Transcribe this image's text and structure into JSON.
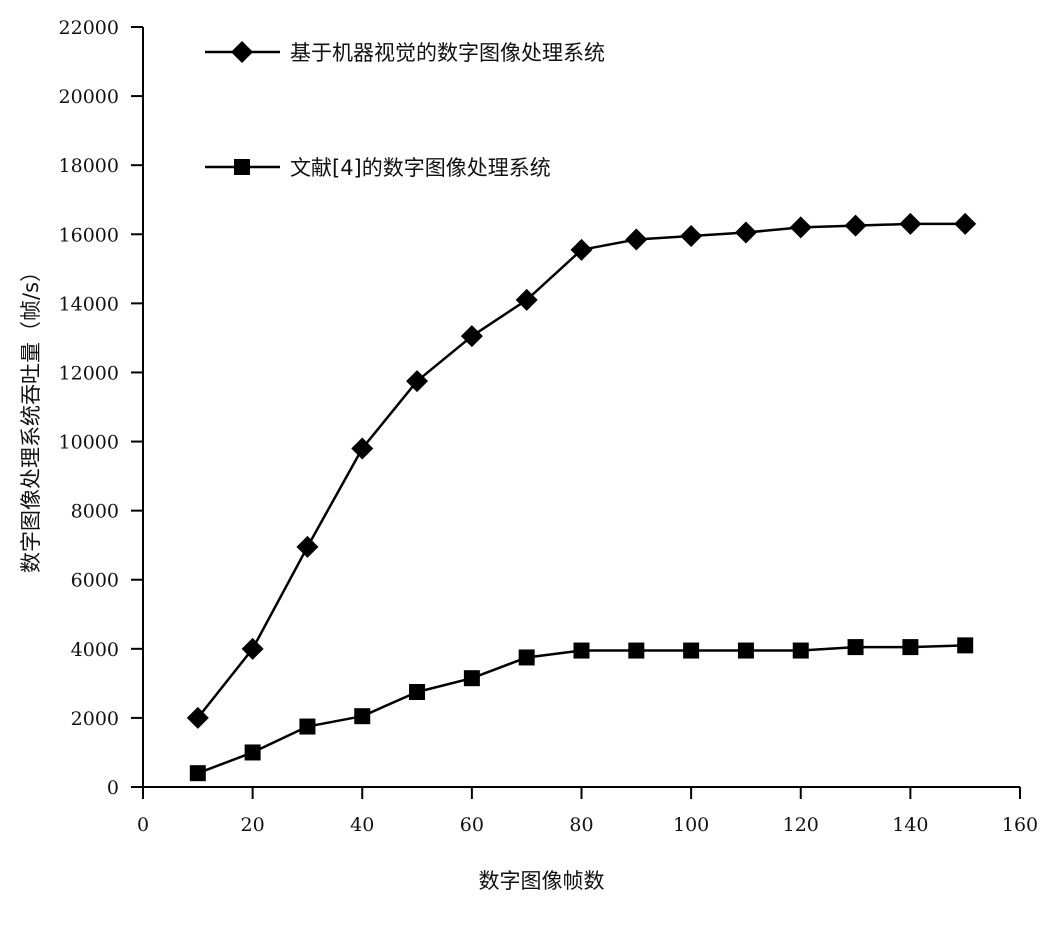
{
  "chart_data": {
    "type": "line",
    "title": "",
    "xlabel": "数字图像帧数",
    "ylabel": "数字图像处理系统吞吐量（帧/s）",
    "xlim": [
      0,
      160
    ],
    "ylim": [
      0,
      22000
    ],
    "x_ticks": [
      "0",
      "20",
      "40",
      "60",
      "80",
      "100",
      "120",
      "140",
      "160"
    ],
    "y_ticks": [
      "0",
      "2000",
      "4000",
      "6000",
      "8000",
      "10000",
      "12000",
      "14000",
      "16000",
      "18000",
      "20000",
      "22000"
    ],
    "grid": false,
    "legend_position": "top-left",
    "x": [
      10,
      20,
      30,
      40,
      50,
      60,
      70,
      80,
      90,
      100,
      110,
      120,
      130,
      140,
      150
    ],
    "series": [
      {
        "name": "基于机器视觉的数字图像处理系统",
        "marker": "diamond",
        "color": "#000000",
        "values": [
          2000,
          4000,
          6950,
          9800,
          11750,
          13050,
          14100,
          15550,
          15850,
          15950,
          16050,
          16200,
          16250,
          16300,
          16300
        ]
      },
      {
        "name": "文献[4]的数字图像处理系统",
        "marker": "square",
        "color": "#000000",
        "values": [
          400,
          1000,
          1750,
          2050,
          2750,
          3150,
          3750,
          3950,
          3950,
          3950,
          3950,
          3950,
          4050,
          4050,
          4100
        ]
      }
    ]
  }
}
